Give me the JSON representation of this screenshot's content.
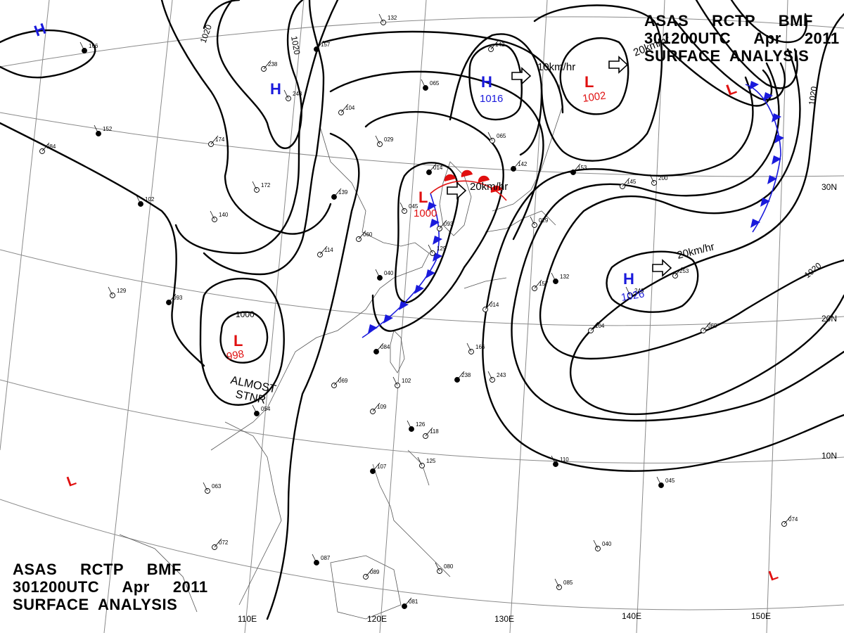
{
  "title": {
    "line1": "ASAS     RCTP     BMF",
    "line2": "301200UTC     Apr     2011",
    "line3": "SURFACE  ANALYSIS"
  },
  "colors": {
    "high": "#1a1adc",
    "low": "#e01010",
    "front_cold": "#1a1adc",
    "front_warm": "#e01010",
    "isobar": "#000000",
    "grid": "#8a8a8a"
  },
  "pressure_centers": [
    {
      "type": "H",
      "value": "1016",
      "name": "high-center-north"
    },
    {
      "type": "L",
      "value": "1002",
      "name": "low-center-northeast"
    },
    {
      "type": "L",
      "value": "1000",
      "name": "low-center-frontal"
    },
    {
      "type": "L",
      "value": "998",
      "name": "low-center-southwest"
    },
    {
      "type": "H",
      "value": "1026",
      "name": "high-center-pacific"
    },
    {
      "type": "H",
      "value": "",
      "name": "high-center-mongolia"
    },
    {
      "type": "H",
      "value": "",
      "name": "high-center-northwest"
    },
    {
      "type": "L",
      "value": "",
      "name": "low-center-east"
    },
    {
      "type": "L",
      "value": "",
      "name": "low-center-west"
    },
    {
      "type": "L",
      "value": "",
      "name": "low-center-southeast"
    }
  ],
  "isobar_labels": [
    "1020",
    "1020",
    "1000",
    "1020",
    "1020"
  ],
  "movement_labels": [
    "10km/hr",
    "20km/hr",
    "20km/hr",
    "20km/hr"
  ],
  "annotations": {
    "stationary_1": "ALMOST",
    "stationary_2": "STNR"
  },
  "longitude_labels": [
    "110E",
    "120E",
    "130E",
    "140E",
    "150E"
  ],
  "latitude_labels": [
    "30N",
    "20N",
    "10N"
  ],
  "station_samples": [
    "166",
    "238",
    "243",
    "157",
    "132",
    "104",
    "065",
    "142",
    "029",
    "014",
    "045",
    "060",
    "040",
    "093",
    "129",
    "084",
    "102",
    "109",
    "126",
    "118",
    "125",
    "107",
    "063",
    "072",
    "087",
    "089",
    "080",
    "081",
    "085",
    "074",
    "110",
    "145",
    "200",
    "153",
    "246",
    "253",
    "152",
    "174",
    "172",
    "139",
    "140",
    "114",
    "054",
    "069"
  ]
}
